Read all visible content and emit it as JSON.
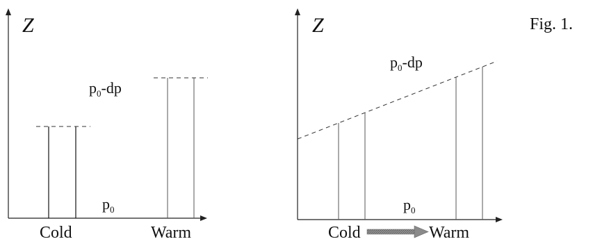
{
  "figure_label": "Fig. 1.",
  "left_panel": {
    "axis_label": "Z",
    "upper_pressure": {
      "base": "p",
      "sub": "0",
      "rest": "-dp"
    },
    "lower_pressure": {
      "base": "p",
      "sub": "0"
    },
    "cold_label": "Cold",
    "warm_label": "Warm"
  },
  "right_panel": {
    "axis_label": "Z",
    "upper_pressure": {
      "base": "p",
      "sub": "0",
      "rest": "-dp"
    },
    "lower_pressure": {
      "base": "p",
      "sub": "0"
    },
    "cold_label": "Cold",
    "warm_label": "Warm"
  }
}
